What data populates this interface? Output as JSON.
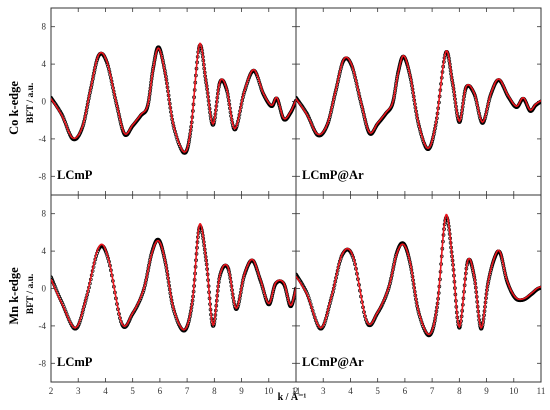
{
  "figure": {
    "x_axis_label": "k / Å⁻¹",
    "y_axis_label": "BFT / a.u.",
    "row_labels": [
      "Co k-edge",
      "Mn k-edge"
    ],
    "colors": {
      "experiment": "#000000",
      "fit": "#e8141c",
      "axis": "#333333",
      "background": "#ffffff"
    }
  },
  "chart_data": [
    {
      "type": "line",
      "title": "LCmP",
      "edge": "Co k-edge",
      "xlim": [
        2,
        11
      ],
      "ylim": [
        -10,
        10
      ],
      "xticks": [
        2,
        3,
        4,
        5,
        6,
        7,
        8,
        9,
        10,
        11
      ],
      "yticks": [
        -8,
        -4,
        0,
        4,
        8
      ],
      "grid": false,
      "x": [
        2.0,
        2.4,
        2.8,
        3.15,
        3.45,
        3.75,
        4.05,
        4.4,
        4.7,
        5.0,
        5.3,
        5.55,
        5.75,
        5.95,
        6.2,
        6.5,
        6.9,
        7.15,
        7.45,
        7.7,
        7.95,
        8.2,
        8.45,
        8.75,
        9.1,
        9.45,
        9.8,
        10.1,
        10.3,
        10.55,
        10.8,
        11.0
      ],
      "series": [
        {
          "values": [
            0.4,
            -1.4,
            -4.0,
            -2.8,
            1.2,
            4.9,
            4.2,
            -0.2,
            -3.5,
            -2.6,
            -1.5,
            -0.5,
            3.5,
            5.8,
            3.0,
            -2.6,
            -5.5,
            -2.7,
            5.9,
            2.0,
            -2.5,
            2.0,
            1.3,
            -3.0,
            1.0,
            3.3,
            0.8,
            -0.5,
            0.3,
            -1.9,
            -1.2,
            0.1
          ]
        },
        {
          "values": [
            0.3,
            -1.5,
            -3.9,
            -2.7,
            1.3,
            5.0,
            4.3,
            -0.1,
            -3.4,
            -2.5,
            -1.4,
            -0.4,
            3.4,
            5.7,
            2.9,
            -2.5,
            -5.4,
            -2.6,
            6.1,
            2.1,
            -2.4,
            2.1,
            1.4,
            -2.9,
            1.1,
            3.4,
            0.9,
            -0.4,
            0.4,
            -1.8,
            -1.1,
            0.2
          ]
        }
      ]
    },
    {
      "type": "line",
      "title": "LCmP@Ar",
      "edge": "Co k-edge",
      "xlim": [
        2,
        11
      ],
      "ylim": [
        -10,
        10
      ],
      "xticks": [
        2,
        3,
        4,
        5,
        6,
        7,
        8,
        9,
        10,
        11
      ],
      "yticks": [
        -8,
        -4,
        0,
        4,
        8
      ],
      "grid": false,
      "x": [
        2.0,
        2.4,
        2.8,
        3.15,
        3.45,
        3.75,
        4.05,
        4.4,
        4.7,
        5.0,
        5.3,
        5.55,
        5.75,
        5.95,
        6.2,
        6.5,
        6.85,
        7.15,
        7.5,
        7.75,
        8.0,
        8.25,
        8.55,
        8.85,
        9.15,
        9.45,
        9.8,
        10.1,
        10.35,
        10.6,
        10.8,
        11.0
      ],
      "series": [
        {
          "values": [
            0.4,
            -1.3,
            -3.6,
            -2.5,
            1.0,
            4.4,
            3.8,
            -0.3,
            -3.4,
            -2.4,
            -1.3,
            -0.2,
            3.1,
            4.8,
            2.6,
            -2.4,
            -5.1,
            -2.2,
            5.2,
            2.0,
            -2.2,
            1.5,
            0.8,
            -2.3,
            0.7,
            2.3,
            0.5,
            -0.6,
            0.3,
            -1.0,
            -0.4,
            0.0
          ]
        },
        {
          "values": [
            0.3,
            -1.4,
            -3.5,
            -2.4,
            1.1,
            4.5,
            3.9,
            -0.2,
            -3.3,
            -2.3,
            -1.2,
            -0.1,
            3.0,
            4.9,
            2.7,
            -2.3,
            -5.0,
            -2.1,
            5.3,
            2.1,
            -2.1,
            1.6,
            0.9,
            -2.2,
            0.8,
            2.4,
            0.6,
            -0.5,
            0.4,
            -0.9,
            -0.3,
            0.1
          ]
        }
      ]
    },
    {
      "type": "line",
      "title": "LCmP",
      "edge": "Mn k-edge",
      "xlim": [
        2,
        11
      ],
      "ylim": [
        -10,
        10
      ],
      "xticks": [
        2,
        3,
        4,
        5,
        6,
        7,
        8,
        9,
        10,
        11
      ],
      "yticks": [
        -8,
        -4,
        0,
        4,
        8
      ],
      "grid": false,
      "x": [
        2.0,
        2.4,
        2.9,
        3.3,
        3.75,
        4.1,
        4.6,
        5.0,
        5.4,
        5.7,
        5.95,
        6.2,
        6.5,
        6.9,
        7.2,
        7.45,
        7.7,
        7.95,
        8.2,
        8.5,
        8.8,
        9.1,
        9.4,
        9.7,
        10.0,
        10.25,
        10.55,
        10.8,
        11.0
      ],
      "series": [
        {
          "values": [
            1.2,
            -1.5,
            -4.3,
            -1.0,
            4.2,
            3.2,
            -3.8,
            -2.7,
            -0.2,
            3.8,
            5.2,
            2.8,
            -2.2,
            -4.5,
            -1.3,
            6.5,
            3.0,
            -4.0,
            1.3,
            2.2,
            -2.2,
            1.4,
            3.0,
            0.8,
            -1.7,
            0.5,
            0.5,
            -1.9,
            0.0
          ]
        },
        {
          "values": [
            1.0,
            -1.6,
            -4.2,
            -0.9,
            4.4,
            3.3,
            -3.7,
            -2.6,
            -0.1,
            3.7,
            5.1,
            2.9,
            -2.1,
            -4.4,
            -1.2,
            6.8,
            3.1,
            -3.9,
            1.4,
            2.3,
            -2.1,
            1.5,
            3.1,
            0.9,
            -1.6,
            0.6,
            0.6,
            -1.8,
            0.1
          ]
        }
      ]
    },
    {
      "type": "line",
      "title": "LCmP@Ar",
      "edge": "Mn k-edge",
      "xlim": [
        2,
        11
      ],
      "ylim": [
        -10,
        10
      ],
      "xticks": [
        2,
        3,
        4,
        5,
        6,
        7,
        8,
        9,
        10,
        11
      ],
      "yticks": [
        -8,
        -4,
        0,
        4,
        8
      ],
      "grid": false,
      "x": [
        2.0,
        2.4,
        2.9,
        3.3,
        3.7,
        4.1,
        4.6,
        5.0,
        5.4,
        5.7,
        5.95,
        6.2,
        6.5,
        6.9,
        7.2,
        7.5,
        7.75,
        8.0,
        8.3,
        8.55,
        8.8,
        9.05,
        9.3,
        9.5,
        9.75,
        10.05,
        10.35,
        10.65,
        10.85,
        11.0
      ],
      "series": [
        {
          "values": [
            1.5,
            -0.5,
            -4.3,
            -1.0,
            3.6,
            3.3,
            -3.6,
            -2.6,
            0.0,
            3.8,
            4.8,
            2.6,
            -2.5,
            -5.0,
            -1.6,
            7.5,
            3.0,
            -4.2,
            2.8,
            1.2,
            -4.3,
            0.5,
            3.3,
            3.8,
            0.8,
            -1.0,
            -1.2,
            -0.6,
            -0.1,
            0.1
          ]
        },
        {
          "values": [
            1.3,
            -0.6,
            -4.2,
            -0.9,
            3.7,
            3.4,
            -3.5,
            -2.5,
            0.1,
            3.7,
            4.7,
            2.7,
            -2.4,
            -4.9,
            -1.5,
            7.8,
            3.1,
            -4.1,
            2.9,
            1.3,
            -4.2,
            0.6,
            3.4,
            3.9,
            0.9,
            -0.9,
            -1.1,
            -0.5,
            0.0,
            0.2
          ]
        }
      ]
    }
  ]
}
